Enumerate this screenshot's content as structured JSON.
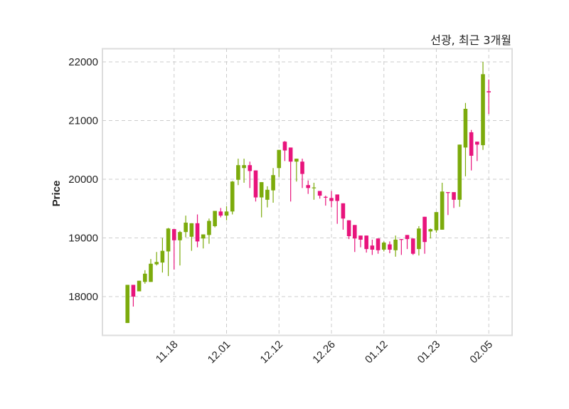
{
  "chart_data": {
    "type": "candlestick",
    "title": "선광, 최근 3개월",
    "xlabel": "",
    "ylabel": "Price",
    "ylim": [
      17345,
      22230
    ],
    "xlim": [
      -4.3,
      66
    ],
    "grid": true,
    "yticks": [
      18000,
      19000,
      20000,
      21000,
      22000
    ],
    "xticks": [
      {
        "index": 8,
        "label": "11.18"
      },
      {
        "index": 17,
        "label": "12.01"
      },
      {
        "index": 26,
        "label": "12.12"
      },
      {
        "index": 35,
        "label": "12.26"
      },
      {
        "index": 44,
        "label": "01.12"
      },
      {
        "index": 53,
        "label": "01.23"
      },
      {
        "index": 62,
        "label": "02.05"
      }
    ],
    "colors": {
      "up": "#7cab0c",
      "down": "#e8147c",
      "grid": "#cccccc",
      "frame": "#dddddd"
    },
    "ohlc": [
      [
        17550,
        18200,
        17550,
        18200
      ],
      [
        18200,
        18200,
        17830,
        18000
      ],
      [
        18090,
        18270,
        18090,
        18270
      ],
      [
        18250,
        18450,
        18220,
        18390
      ],
      [
        18250,
        18640,
        18250,
        18560
      ],
      [
        18550,
        18760,
        18530,
        18590
      ],
      [
        18580,
        19000,
        18410,
        18780
      ],
      [
        18770,
        19170,
        18350,
        19160
      ],
      [
        19150,
        19150,
        18460,
        18960
      ],
      [
        18960,
        19120,
        18530,
        19100
      ],
      [
        19100,
        19380,
        19010,
        19260
      ],
      [
        19020,
        19250,
        18780,
        19250
      ],
      [
        19250,
        19400,
        18840,
        18940
      ],
      [
        18990,
        19060,
        18820,
        19060
      ],
      [
        19050,
        19330,
        18900,
        19290
      ],
      [
        19200,
        19460,
        19180,
        19460
      ],
      [
        19450,
        19510,
        19350,
        19380
      ],
      [
        19380,
        19540,
        19300,
        19450
      ],
      [
        19450,
        19970,
        19400,
        19960
      ],
      [
        19990,
        20350,
        19900,
        20240
      ],
      [
        20190,
        20350,
        19940,
        20240
      ],
      [
        20240,
        20300,
        19850,
        20140
      ],
      [
        20150,
        20150,
        19620,
        19690
      ],
      [
        19690,
        19950,
        19350,
        19950
      ],
      [
        19650,
        19880,
        19520,
        19820
      ],
      [
        19810,
        20190,
        19600,
        20070
      ],
      [
        20190,
        20500,
        20040,
        20500
      ],
      [
        20640,
        20650,
        20310,
        20490
      ],
      [
        20540,
        20540,
        19620,
        20300
      ],
      [
        20300,
        20350,
        19960,
        20350
      ],
      [
        20300,
        20350,
        19850,
        20090
      ],
      [
        19900,
        19980,
        19750,
        19850
      ],
      [
        19850,
        19940,
        19650,
        19860
      ],
      [
        19800,
        19800,
        19670,
        19720
      ],
      [
        19700,
        19720,
        19550,
        19690
      ],
      [
        19680,
        19800,
        19520,
        19630
      ],
      [
        19740,
        19740,
        19240,
        19630
      ],
      [
        19590,
        19590,
        19140,
        19330
      ],
      [
        19300,
        19300,
        18980,
        19030
      ],
      [
        19220,
        19220,
        18760,
        18990
      ],
      [
        19040,
        19040,
        18840,
        18970
      ],
      [
        19040,
        19040,
        18750,
        18810
      ],
      [
        18870,
        18970,
        18710,
        18800
      ],
      [
        18990,
        18990,
        18730,
        18790
      ],
      [
        18800,
        18940,
        18770,
        18920
      ],
      [
        18890,
        18940,
        18740,
        18800
      ],
      [
        18790,
        19040,
        18680,
        18970
      ],
      [
        18980,
        18980,
        18710,
        18970
      ],
      [
        19050,
        19050,
        18810,
        18980
      ],
      [
        18990,
        18990,
        18710,
        18730
      ],
      [
        18810,
        19200,
        18700,
        19160
      ],
      [
        19360,
        19360,
        18730,
        18930
      ],
      [
        19110,
        19160,
        18990,
        19150
      ],
      [
        19130,
        19440,
        19090,
        19440
      ],
      [
        19140,
        19940,
        19140,
        19790
      ],
      [
        19780,
        19780,
        19390,
        19770
      ],
      [
        19780,
        19780,
        19510,
        19650
      ],
      [
        19650,
        20590,
        19530,
        20590
      ],
      [
        20540,
        21300,
        20050,
        21200
      ],
      [
        20800,
        20840,
        20150,
        20400
      ],
      [
        20640,
        20640,
        20310,
        20590
      ],
      [
        20580,
        22000,
        20500,
        21790
      ],
      [
        21500,
        21700,
        21110,
        21480
      ]
    ]
  }
}
